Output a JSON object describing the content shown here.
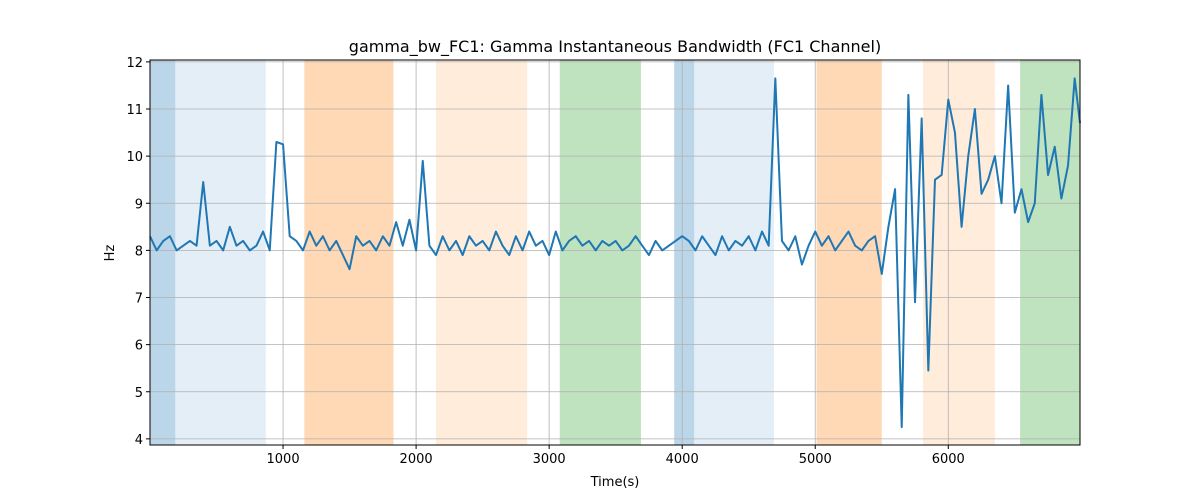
{
  "chart_data": {
    "type": "line",
    "title": "gamma_bw_FC1: Gamma Instantaneous Bandwidth (FC1 Channel)",
    "x_label": "Time(s)",
    "y_label": "Hz",
    "xlim": [
      0,
      6990
    ],
    "ylim": [
      3.87,
      12.04
    ],
    "xticks": [
      1000,
      2000,
      3000,
      4000,
      5000,
      6000
    ],
    "yticks": [
      4,
      5,
      6,
      7,
      8,
      9,
      10,
      11,
      12
    ],
    "grid": true,
    "spans": [
      {
        "start": 0,
        "end": 190,
        "color": "#1f77b4",
        "opacity": 0.3
      },
      {
        "start": 190,
        "end": 870,
        "color": "#1f77b4",
        "opacity": 0.12
      },
      {
        "start": 1160,
        "end": 1830,
        "color": "#ff7f0e",
        "opacity": 0.3
      },
      {
        "start": 2150,
        "end": 2835,
        "color": "#ff7f0e",
        "opacity": 0.15
      },
      {
        "start": 3080,
        "end": 3690,
        "color": "#2ca02c",
        "opacity": 0.3
      },
      {
        "start": 3940,
        "end": 4090,
        "color": "#1f77b4",
        "opacity": 0.3
      },
      {
        "start": 4090,
        "end": 4690,
        "color": "#1f77b4",
        "opacity": 0.12
      },
      {
        "start": 5010,
        "end": 5500,
        "color": "#ff7f0e",
        "opacity": 0.3
      },
      {
        "start": 5810,
        "end": 6350,
        "color": "#ff7f0e",
        "opacity": 0.15
      },
      {
        "start": 6540,
        "end": 6990,
        "color": "#2ca02c",
        "opacity": 0.3
      }
    ],
    "x": [
      0,
      50,
      100,
      150,
      200,
      250,
      300,
      350,
      400,
      450,
      500,
      550,
      600,
      650,
      700,
      750,
      800,
      850,
      900,
      950,
      1000,
      1050,
      1100,
      1150,
      1200,
      1250,
      1300,
      1350,
      1400,
      1450,
      1500,
      1550,
      1600,
      1650,
      1700,
      1750,
      1800,
      1850,
      1900,
      1950,
      2000,
      2050,
      2100,
      2150,
      2200,
      2250,
      2300,
      2350,
      2400,
      2450,
      2500,
      2550,
      2600,
      2650,
      2700,
      2750,
      2800,
      2850,
      2900,
      2950,
      3000,
      3050,
      3100,
      3150,
      3200,
      3250,
      3300,
      3350,
      3400,
      3450,
      3500,
      3550,
      3600,
      3650,
      3700,
      3750,
      3800,
      3850,
      3900,
      3950,
      4000,
      4050,
      4100,
      4150,
      4200,
      4250,
      4300,
      4350,
      4400,
      4450,
      4500,
      4550,
      4600,
      4650,
      4700,
      4750,
      4800,
      4850,
      4900,
      4950,
      5000,
      5050,
      5100,
      5150,
      5200,
      5250,
      5300,
      5350,
      5400,
      5450,
      5500,
      5550,
      5600,
      5650,
      5700,
      5750,
      5800,
      5850,
      5900,
      5950,
      6000,
      6050,
      6100,
      6150,
      6200,
      6250,
      6300,
      6350,
      6400,
      6450,
      6500,
      6550,
      6600,
      6650,
      6700,
      6750,
      6800,
      6850,
      6900,
      6950,
      6990
    ],
    "series": [
      {
        "name": "gamma_bw",
        "color": "#1f77b4",
        "values": [
          8.3,
          8.0,
          8.2,
          8.3,
          8.0,
          8.1,
          8.2,
          8.1,
          9.45,
          8.1,
          8.2,
          8.0,
          8.5,
          8.1,
          8.2,
          8.0,
          8.1,
          8.4,
          8.0,
          10.3,
          10.25,
          8.3,
          8.2,
          8.0,
          8.4,
          8.1,
          8.3,
          8.0,
          8.2,
          7.9,
          7.6,
          8.3,
          8.1,
          8.2,
          8.0,
          8.3,
          8.1,
          8.6,
          8.1,
          8.65,
          8.0,
          9.9,
          8.1,
          7.9,
          8.3,
          8.0,
          8.2,
          7.9,
          8.3,
          8.1,
          8.2,
          8.0,
          8.4,
          8.1,
          7.9,
          8.3,
          8.0,
          8.4,
          8.1,
          8.2,
          7.9,
          8.4,
          8.0,
          8.2,
          8.3,
          8.1,
          8.2,
          8.0,
          8.2,
          8.1,
          8.2,
          8.0,
          8.1,
          8.3,
          8.1,
          7.9,
          8.2,
          8.0,
          8.1,
          8.2,
          8.3,
          8.2,
          8.0,
          8.3,
          8.1,
          7.9,
          8.3,
          8.0,
          8.2,
          8.1,
          8.3,
          8.0,
          8.4,
          8.1,
          11.65,
          8.2,
          8.0,
          8.3,
          7.7,
          8.1,
          8.4,
          8.1,
          8.3,
          8.0,
          8.2,
          8.4,
          8.1,
          8.0,
          8.2,
          8.3,
          7.5,
          8.5,
          9.3,
          4.25,
          11.3,
          6.9,
          10.8,
          5.45,
          9.5,
          9.6,
          11.2,
          10.5,
          8.5,
          10.0,
          11.0,
          9.2,
          9.5,
          10.0,
          9.0,
          11.5,
          8.8,
          9.3,
          8.6,
          9.0,
          11.3,
          9.6,
          10.2,
          9.1,
          9.8,
          11.65,
          10.7
        ]
      }
    ]
  }
}
